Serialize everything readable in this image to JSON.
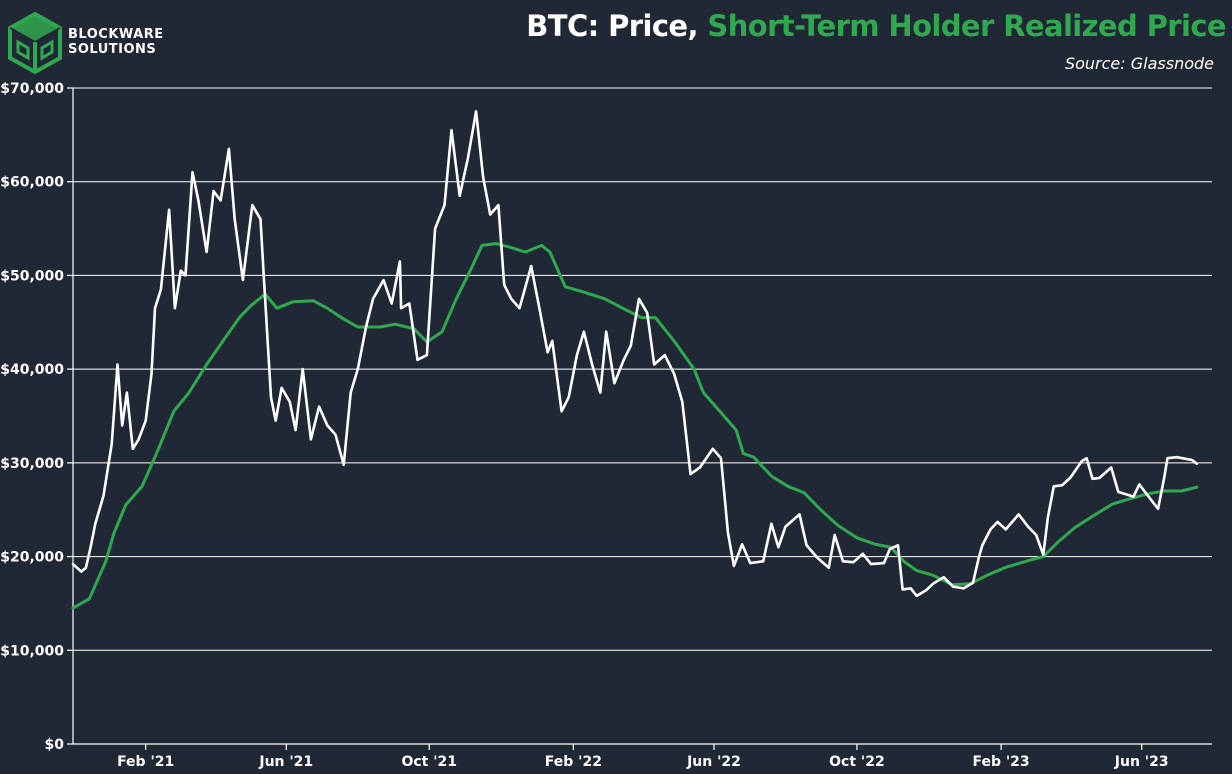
{
  "header": {
    "logo_line1": "BLOCKWARE",
    "logo_line2": "SOLUTIONS",
    "title_prefix": "BTC: Price, ",
    "title_highlight": "Short-Term Holder Realized Price",
    "source": "Source: Glassnode"
  },
  "colors": {
    "background": "#212835",
    "price": "#ffffff",
    "sth_realized_price": "#2fa84f",
    "gridline": "#ffffff",
    "logo_green": "#2fa84f"
  },
  "chart_data": {
    "type": "line",
    "title": "BTC: Price, Short-Term Holder Realized Price",
    "xlabel": "",
    "ylabel": "",
    "ylim": [
      0,
      70000
    ],
    "xlim": [
      "2020-12-01",
      "2023-07-31"
    ],
    "grid": "horizontal",
    "legend": "none",
    "y_ticks": [
      {
        "value": 0,
        "label": "$0"
      },
      {
        "value": 10000,
        "label": "$10,000"
      },
      {
        "value": 20000,
        "label": "$20,000"
      },
      {
        "value": 30000,
        "label": "$30,000"
      },
      {
        "value": 40000,
        "label": "$40,000"
      },
      {
        "value": 50000,
        "label": "$50,000"
      },
      {
        "value": 60000,
        "label": "$60,000"
      },
      {
        "value": 70000,
        "label": "$70,000"
      }
    ],
    "x_ticks": [
      {
        "value": "2021-02-01",
        "label": "Feb '21"
      },
      {
        "value": "2021-06-01",
        "label": "Jun '21"
      },
      {
        "value": "2021-10-01",
        "label": "Oct '21"
      },
      {
        "value": "2022-02-01",
        "label": "Feb '22"
      },
      {
        "value": "2022-06-01",
        "label": "Jun '22"
      },
      {
        "value": "2022-10-01",
        "label": "Oct '22"
      },
      {
        "value": "2023-02-01",
        "label": "Feb '23"
      },
      {
        "value": "2023-06-01",
        "label": "Jun '23"
      }
    ],
    "series": [
      {
        "color": "#ffffff",
        "points": [
          [
            "2020-12-01",
            19200
          ],
          [
            "2020-12-08",
            18400
          ],
          [
            "2020-12-12",
            18800
          ],
          [
            "2020-12-16",
            21000
          ],
          [
            "2020-12-20",
            23500
          ],
          [
            "2020-12-27",
            26500
          ],
          [
            "2021-01-03",
            32000
          ],
          [
            "2021-01-08",
            40500
          ],
          [
            "2021-01-12",
            34000
          ],
          [
            "2021-01-16",
            37500
          ],
          [
            "2021-01-21",
            31500
          ],
          [
            "2021-01-26",
            32500
          ],
          [
            "2021-02-01",
            34500
          ],
          [
            "2021-02-06",
            39500
          ],
          [
            "2021-02-09",
            46500
          ],
          [
            "2021-02-14",
            48500
          ],
          [
            "2021-02-21",
            57000
          ],
          [
            "2021-02-26",
            46500
          ],
          [
            "2021-03-03",
            50500
          ],
          [
            "2021-03-07",
            50000
          ],
          [
            "2021-03-13",
            61000
          ],
          [
            "2021-03-18",
            58000
          ],
          [
            "2021-03-25",
            52500
          ],
          [
            "2021-03-31",
            59000
          ],
          [
            "2021-04-06",
            58000
          ],
          [
            "2021-04-13",
            63500
          ],
          [
            "2021-04-18",
            56000
          ],
          [
            "2021-04-25",
            49500
          ],
          [
            "2021-05-03",
            57500
          ],
          [
            "2021-05-10",
            56000
          ],
          [
            "2021-05-13",
            49500
          ],
          [
            "2021-05-19",
            37000
          ],
          [
            "2021-05-23",
            34500
          ],
          [
            "2021-05-28",
            38000
          ],
          [
            "2021-06-04",
            36500
          ],
          [
            "2021-06-09",
            33500
          ],
          [
            "2021-06-15",
            40000
          ],
          [
            "2021-06-22",
            32500
          ],
          [
            "2021-06-29",
            36000
          ],
          [
            "2021-07-06",
            34000
          ],
          [
            "2021-07-13",
            33000
          ],
          [
            "2021-07-20",
            29800
          ],
          [
            "2021-07-26",
            37500
          ],
          [
            "2021-08-01",
            40000
          ],
          [
            "2021-08-08",
            44500
          ],
          [
            "2021-08-14",
            47500
          ],
          [
            "2021-08-23",
            49500
          ],
          [
            "2021-08-30",
            47000
          ],
          [
            "2021-09-06",
            51500
          ],
          [
            "2021-09-07",
            46500
          ],
          [
            "2021-09-14",
            47000
          ],
          [
            "2021-09-21",
            41000
          ],
          [
            "2021-09-29",
            41500
          ],
          [
            "2021-10-06",
            55000
          ],
          [
            "2021-10-14",
            57500
          ],
          [
            "2021-10-20",
            65500
          ],
          [
            "2021-10-27",
            58500
          ],
          [
            "2021-11-03",
            62500
          ],
          [
            "2021-11-10",
            67500
          ],
          [
            "2021-11-16",
            60500
          ],
          [
            "2021-11-22",
            56500
          ],
          [
            "2021-11-29",
            57500
          ],
          [
            "2021-12-04",
            49000
          ],
          [
            "2021-12-10",
            47500
          ],
          [
            "2021-12-17",
            46500
          ],
          [
            "2021-12-27",
            51000
          ],
          [
            "2022-01-03",
            46500
          ],
          [
            "2022-01-10",
            41800
          ],
          [
            "2022-01-14",
            43000
          ],
          [
            "2022-01-22",
            35500
          ],
          [
            "2022-01-28",
            37000
          ],
          [
            "2022-02-04",
            41500
          ],
          [
            "2022-02-10",
            44000
          ],
          [
            "2022-02-17",
            40500
          ],
          [
            "2022-02-24",
            37500
          ],
          [
            "2022-03-01",
            44000
          ],
          [
            "2022-03-08",
            38500
          ],
          [
            "2022-03-16",
            41000
          ],
          [
            "2022-03-22",
            42500
          ],
          [
            "2022-03-29",
            47500
          ],
          [
            "2022-04-05",
            46000
          ],
          [
            "2022-04-11",
            40500
          ],
          [
            "2022-04-20",
            41500
          ],
          [
            "2022-04-28",
            39500
          ],
          [
            "2022-05-05",
            36500
          ],
          [
            "2022-05-10",
            31000
          ],
          [
            "2022-05-12",
            28800
          ],
          [
            "2022-05-20",
            29500
          ],
          [
            "2022-05-31",
            31500
          ],
          [
            "2022-06-07",
            30500
          ],
          [
            "2022-06-13",
            22500
          ],
          [
            "2022-06-18",
            19000
          ],
          [
            "2022-06-25",
            21300
          ],
          [
            "2022-07-02",
            19300
          ],
          [
            "2022-07-13",
            19500
          ],
          [
            "2022-07-20",
            23500
          ],
          [
            "2022-07-26",
            21000
          ],
          [
            "2022-08-01",
            23200
          ],
          [
            "2022-08-13",
            24500
          ],
          [
            "2022-08-19",
            21200
          ],
          [
            "2022-08-28",
            19900
          ],
          [
            "2022-09-07",
            18800
          ],
          [
            "2022-09-12",
            22300
          ],
          [
            "2022-09-19",
            19500
          ],
          [
            "2022-09-28",
            19400
          ],
          [
            "2022-10-06",
            20300
          ],
          [
            "2022-10-13",
            19200
          ],
          [
            "2022-10-24",
            19300
          ],
          [
            "2022-10-29",
            20800
          ],
          [
            "2022-11-05",
            21200
          ],
          [
            "2022-11-09",
            16500
          ],
          [
            "2022-11-16",
            16600
          ],
          [
            "2022-11-21",
            15800
          ],
          [
            "2022-11-29",
            16400
          ],
          [
            "2022-12-05",
            17100
          ],
          [
            "2022-12-14",
            17800
          ],
          [
            "2022-12-22",
            16800
          ],
          [
            "2022-12-31",
            16600
          ],
          [
            "2023-01-08",
            17200
          ],
          [
            "2023-01-13",
            19900
          ],
          [
            "2023-01-16",
            21200
          ],
          [
            "2023-01-23",
            22900
          ],
          [
            "2023-01-29",
            23700
          ],
          [
            "2023-02-05",
            22900
          ],
          [
            "2023-02-16",
            24500
          ],
          [
            "2023-02-24",
            23200
          ],
          [
            "2023-03-03",
            22300
          ],
          [
            "2023-03-09",
            20200
          ],
          [
            "2023-03-13",
            24200
          ],
          [
            "2023-03-18",
            27500
          ],
          [
            "2023-03-25",
            27600
          ],
          [
            "2023-04-01",
            28400
          ],
          [
            "2023-04-11",
            30200
          ],
          [
            "2023-04-15",
            30500
          ],
          [
            "2023-04-20",
            28300
          ],
          [
            "2023-04-26",
            28400
          ],
          [
            "2023-05-06",
            29500
          ],
          [
            "2023-05-12",
            26900
          ],
          [
            "2023-05-25",
            26400
          ],
          [
            "2023-05-30",
            27700
          ],
          [
            "2023-06-10",
            25900
          ],
          [
            "2023-06-15",
            25100
          ],
          [
            "2023-06-20",
            28300
          ],
          [
            "2023-06-23",
            30500
          ],
          [
            "2023-07-01",
            30600
          ],
          [
            "2023-07-14",
            30300
          ],
          [
            "2023-07-18",
            29900
          ]
        ]
      },
      {
        "color": "#2fa84f",
        "points": [
          [
            "2020-12-01",
            14500
          ],
          [
            "2020-12-15",
            15500
          ],
          [
            "2020-12-29",
            19500
          ],
          [
            "2021-01-05",
            22500
          ],
          [
            "2021-01-15",
            25500
          ],
          [
            "2021-01-29",
            27500
          ],
          [
            "2021-02-12",
            31500
          ],
          [
            "2021-02-25",
            35500
          ],
          [
            "2021-03-10",
            37500
          ],
          [
            "2021-03-25",
            40500
          ],
          [
            "2021-04-09",
            43200
          ],
          [
            "2021-04-22",
            45500
          ],
          [
            "2021-05-02",
            46800
          ],
          [
            "2021-05-14",
            48000
          ],
          [
            "2021-05-24",
            46500
          ],
          [
            "2021-06-07",
            47200
          ],
          [
            "2021-06-24",
            47300
          ],
          [
            "2021-07-06",
            46500
          ],
          [
            "2021-07-18",
            45500
          ],
          [
            "2021-08-01",
            44500
          ],
          [
            "2021-08-20",
            44500
          ],
          [
            "2021-09-02",
            44800
          ],
          [
            "2021-09-18",
            44300
          ],
          [
            "2021-09-29",
            42900
          ],
          [
            "2021-10-12",
            44000
          ],
          [
            "2021-10-24",
            47500
          ],
          [
            "2021-11-05",
            50500
          ],
          [
            "2021-11-15",
            53200
          ],
          [
            "2021-11-27",
            53400
          ],
          [
            "2021-12-09",
            53000
          ],
          [
            "2021-12-22",
            52500
          ],
          [
            "2022-01-05",
            53200
          ],
          [
            "2022-01-12",
            52500
          ],
          [
            "2022-01-25",
            48800
          ],
          [
            "2022-02-08",
            48300
          ],
          [
            "2022-02-28",
            47500
          ],
          [
            "2022-03-15",
            46500
          ],
          [
            "2022-03-31",
            45500
          ],
          [
            "2022-04-12",
            45500
          ],
          [
            "2022-04-28",
            43000
          ],
          [
            "2022-05-15",
            40000
          ],
          [
            "2022-05-23",
            37500
          ],
          [
            "2022-06-06",
            35500
          ],
          [
            "2022-06-20",
            33500
          ],
          [
            "2022-06-26",
            31000
          ],
          [
            "2022-07-05",
            30600
          ],
          [
            "2022-07-20",
            28600
          ],
          [
            "2022-08-03",
            27500
          ],
          [
            "2022-08-17",
            26800
          ],
          [
            "2022-08-31",
            25000
          ],
          [
            "2022-09-15",
            23300
          ],
          [
            "2022-10-01",
            22000
          ],
          [
            "2022-10-17",
            21300
          ],
          [
            "2022-10-30",
            21000
          ],
          [
            "2022-11-10",
            19500
          ],
          [
            "2022-11-21",
            18500
          ],
          [
            "2022-12-05",
            18000
          ],
          [
            "2022-12-21",
            17000
          ],
          [
            "2023-01-06",
            17100
          ],
          [
            "2023-01-20",
            18000
          ],
          [
            "2023-02-06",
            18900
          ],
          [
            "2023-02-22",
            19500
          ],
          [
            "2023-03-09",
            20000
          ],
          [
            "2023-03-22",
            21600
          ],
          [
            "2023-04-05",
            23100
          ],
          [
            "2023-04-20",
            24300
          ],
          [
            "2023-05-07",
            25600
          ],
          [
            "2023-05-20",
            26100
          ],
          [
            "2023-06-06",
            26700
          ],
          [
            "2023-06-20",
            27000
          ],
          [
            "2023-07-05",
            27000
          ],
          [
            "2023-07-18",
            27400
          ]
        ]
      }
    ]
  }
}
